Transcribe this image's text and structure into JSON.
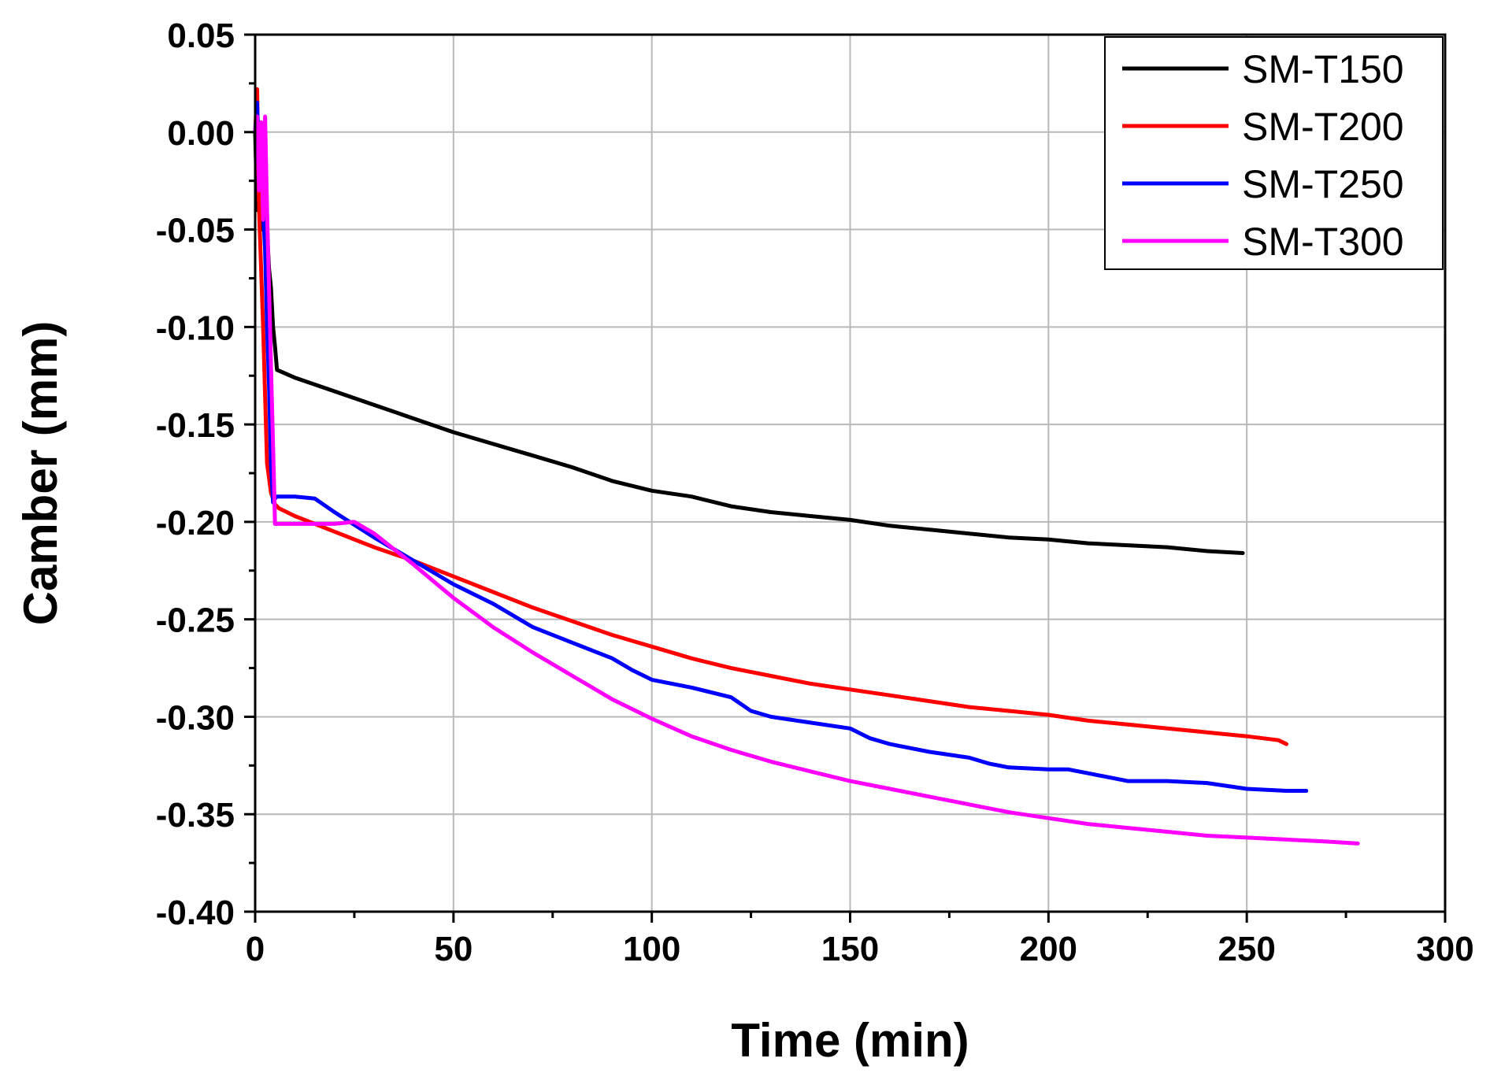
{
  "chart_data": {
    "type": "line",
    "xlabel": "Time (min)",
    "ylabel": "Camber (mm)",
    "xlim": [
      0,
      300
    ],
    "ylim": [
      -0.4,
      0.05
    ],
    "xticks": [
      0,
      50,
      100,
      150,
      200,
      250,
      300
    ],
    "xtick_labels": [
      "0",
      "50",
      "100",
      "150",
      "200",
      "250",
      "300"
    ],
    "yticks": [
      0.05,
      0.0,
      -0.05,
      -0.1,
      -0.15,
      -0.2,
      -0.25,
      -0.3,
      -0.35,
      -0.4
    ],
    "ytick_labels": [
      "0.05",
      "0.00",
      "-0.05",
      "-0.10",
      "-0.15",
      "-0.20",
      "-0.25",
      "-0.30",
      "-0.35",
      "-0.40"
    ],
    "grid": true,
    "legend_position": "top-right",
    "series": [
      {
        "name": "SM-T150",
        "color": "#000000",
        "x": [
          0,
          0.5,
          1,
          1.5,
          2,
          2.5,
          3,
          3.5,
          4,
          4.5,
          5,
          5.5,
          10,
          20,
          30,
          40,
          50,
          60,
          70,
          80,
          90,
          100,
          110,
          120,
          130,
          140,
          150,
          160,
          170,
          180,
          190,
          200,
          210,
          220,
          230,
          240,
          249
        ],
        "y": [
          0.0,
          -0.04,
          -0.02,
          -0.05,
          -0.03,
          -0.06,
          -0.05,
          -0.07,
          -0.08,
          -0.1,
          -0.11,
          -0.122,
          -0.126,
          -0.133,
          -0.14,
          -0.147,
          -0.154,
          -0.16,
          -0.166,
          -0.172,
          -0.179,
          -0.184,
          -0.187,
          -0.192,
          -0.195,
          -0.197,
          -0.199,
          -0.202,
          -0.204,
          -0.206,
          -0.208,
          -0.209,
          -0.211,
          -0.212,
          -0.213,
          -0.215,
          -0.216
        ]
      },
      {
        "name": "SM-T200",
        "color": "#ff0000",
        "x": [
          0,
          0.5,
          1,
          2,
          3,
          4,
          5,
          6,
          10,
          20,
          30,
          40,
          50,
          60,
          70,
          80,
          90,
          100,
          110,
          120,
          130,
          140,
          150,
          160,
          170,
          180,
          190,
          200,
          210,
          220,
          230,
          240,
          250,
          258,
          260
        ],
        "y": [
          0.0,
          0.022,
          -0.04,
          -0.1,
          -0.17,
          -0.185,
          -0.191,
          -0.193,
          -0.197,
          -0.205,
          -0.213,
          -0.22,
          -0.228,
          -0.236,
          -0.244,
          -0.251,
          -0.258,
          -0.264,
          -0.27,
          -0.275,
          -0.279,
          -0.283,
          -0.286,
          -0.289,
          -0.292,
          -0.295,
          -0.297,
          -0.299,
          -0.302,
          -0.304,
          -0.306,
          -0.308,
          -0.31,
          -0.312,
          -0.314
        ]
      },
      {
        "name": "SM-T250",
        "color": "#0000ff",
        "x": [
          0,
          0.5,
          1,
          1.5,
          2,
          2.5,
          3,
          3.5,
          4,
          4.5,
          5,
          5.5,
          6,
          10,
          15,
          20,
          30,
          40,
          50,
          60,
          70,
          80,
          90,
          95,
          100,
          110,
          120,
          125,
          130,
          140,
          150,
          155,
          160,
          165,
          170,
          180,
          185,
          190,
          200,
          205,
          210,
          220,
          230,
          240,
          250,
          260,
          265
        ],
        "y": [
          0.0,
          0.015,
          -0.02,
          0.005,
          -0.04,
          -0.06,
          -0.1,
          -0.13,
          -0.17,
          -0.19,
          -0.188,
          -0.187,
          -0.187,
          -0.187,
          -0.188,
          -0.195,
          -0.208,
          -0.22,
          -0.232,
          -0.242,
          -0.254,
          -0.262,
          -0.27,
          -0.276,
          -0.281,
          -0.285,
          -0.29,
          -0.297,
          -0.3,
          -0.303,
          -0.306,
          -0.311,
          -0.314,
          -0.316,
          -0.318,
          -0.321,
          -0.324,
          -0.326,
          -0.327,
          -0.327,
          -0.329,
          -0.333,
          -0.333,
          -0.334,
          -0.337,
          -0.338,
          -0.338
        ]
      },
      {
        "name": "SM-T300",
        "color": "#ff00ff",
        "x": [
          0,
          0.5,
          1,
          1.5,
          2,
          2.5,
          3,
          3.5,
          4,
          4.5,
          5,
          10,
          20,
          25,
          30,
          40,
          50,
          60,
          70,
          80,
          90,
          100,
          110,
          120,
          130,
          140,
          150,
          160,
          170,
          180,
          190,
          200,
          210,
          220,
          230,
          240,
          250,
          260,
          270,
          278
        ],
        "y": [
          0.0,
          0.008,
          -0.03,
          0.005,
          -0.045,
          0.008,
          -0.04,
          -0.08,
          -0.12,
          -0.16,
          -0.201,
          -0.201,
          -0.201,
          -0.2,
          -0.206,
          -0.222,
          -0.239,
          -0.254,
          -0.267,
          -0.279,
          -0.291,
          -0.301,
          -0.31,
          -0.317,
          -0.323,
          -0.328,
          -0.333,
          -0.337,
          -0.341,
          -0.345,
          -0.349,
          -0.352,
          -0.355,
          -0.357,
          -0.359,
          -0.361,
          -0.362,
          -0.363,
          -0.364,
          -0.365
        ]
      }
    ]
  }
}
